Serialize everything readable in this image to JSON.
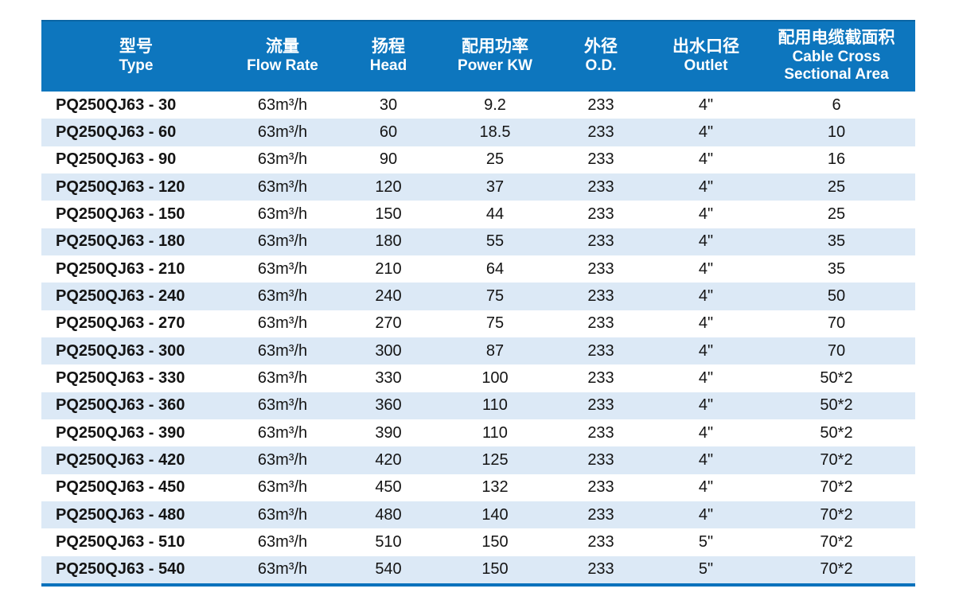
{
  "table": {
    "header": {
      "columns": [
        {
          "key": "type",
          "zh": "型号",
          "en_lines": [
            "Type"
          ]
        },
        {
          "key": "flow-rate",
          "zh": "流量",
          "en_lines": [
            "Flow Rate"
          ]
        },
        {
          "key": "head",
          "zh": "扬程",
          "en_lines": [
            "Head"
          ]
        },
        {
          "key": "power-kw",
          "zh": "配用功率",
          "en_lines": [
            "Power KW"
          ]
        },
        {
          "key": "od",
          "zh": "外径",
          "en_lines": [
            "O.D."
          ]
        },
        {
          "key": "outlet",
          "zh": "出水口径",
          "en_lines": [
            "Outlet"
          ]
        },
        {
          "key": "cable",
          "zh": "配用电缆截面积",
          "en_lines": [
            "Cable Cross",
            "Sectional Area"
          ]
        }
      ]
    },
    "rows": [
      [
        "PQ250QJ63 - 30",
        "63m³/h",
        "30",
        "9.2",
        "233",
        "4\"",
        "6"
      ],
      [
        "PQ250QJ63 - 60",
        "63m³/h",
        "60",
        "18.5",
        "233",
        "4\"",
        "10"
      ],
      [
        "PQ250QJ63 - 90",
        "63m³/h",
        "90",
        "25",
        "233",
        "4\"",
        "16"
      ],
      [
        "PQ250QJ63 - 120",
        "63m³/h",
        "120",
        "37",
        "233",
        "4\"",
        "25"
      ],
      [
        "PQ250QJ63 - 150",
        "63m³/h",
        "150",
        "44",
        "233",
        "4\"",
        "25"
      ],
      [
        "PQ250QJ63 - 180",
        "63m³/h",
        "180",
        "55",
        "233",
        "4\"",
        "35"
      ],
      [
        "PQ250QJ63 - 210",
        "63m³/h",
        "210",
        "64",
        "233",
        "4\"",
        "35"
      ],
      [
        "PQ250QJ63 - 240",
        "63m³/h",
        "240",
        "75",
        "233",
        "4\"",
        "50"
      ],
      [
        "PQ250QJ63 - 270",
        "63m³/h",
        "270",
        "75",
        "233",
        "4\"",
        "70"
      ],
      [
        "PQ250QJ63 - 300",
        "63m³/h",
        "300",
        "87",
        "233",
        "4\"",
        "70"
      ],
      [
        "PQ250QJ63 - 330",
        "63m³/h",
        "330",
        "100",
        "233",
        "4\"",
        "50*2"
      ],
      [
        "PQ250QJ63 - 360",
        "63m³/h",
        "360",
        "110",
        "233",
        "4\"",
        "50*2"
      ],
      [
        "PQ250QJ63 - 390",
        "63m³/h",
        "390",
        "110",
        "233",
        "4\"",
        "50*2"
      ],
      [
        "PQ250QJ63 - 420",
        "63m³/h",
        "420",
        "125",
        "233",
        "4\"",
        "70*2"
      ],
      [
        "PQ250QJ63 - 450",
        "63m³/h",
        "450",
        "132",
        "233",
        "4\"",
        "70*2"
      ],
      [
        "PQ250QJ63 - 480",
        "63m³/h",
        "480",
        "140",
        "233",
        "4\"",
        "70*2"
      ],
      [
        "PQ250QJ63 - 510",
        "63m³/h",
        "510",
        "150",
        "233",
        "5\"",
        "70*2"
      ],
      [
        "PQ250QJ63 - 540",
        "63m³/h",
        "540",
        "150",
        "233",
        "5\"",
        "70*2"
      ]
    ]
  },
  "colors": {
    "header_bg": "#0d76be",
    "header_top_rule": "#0b65a4",
    "header_text": "#ffffff",
    "stripe": "#dce9f6",
    "bottom_rule": "#0a72bc",
    "row_text": "#141414"
  }
}
